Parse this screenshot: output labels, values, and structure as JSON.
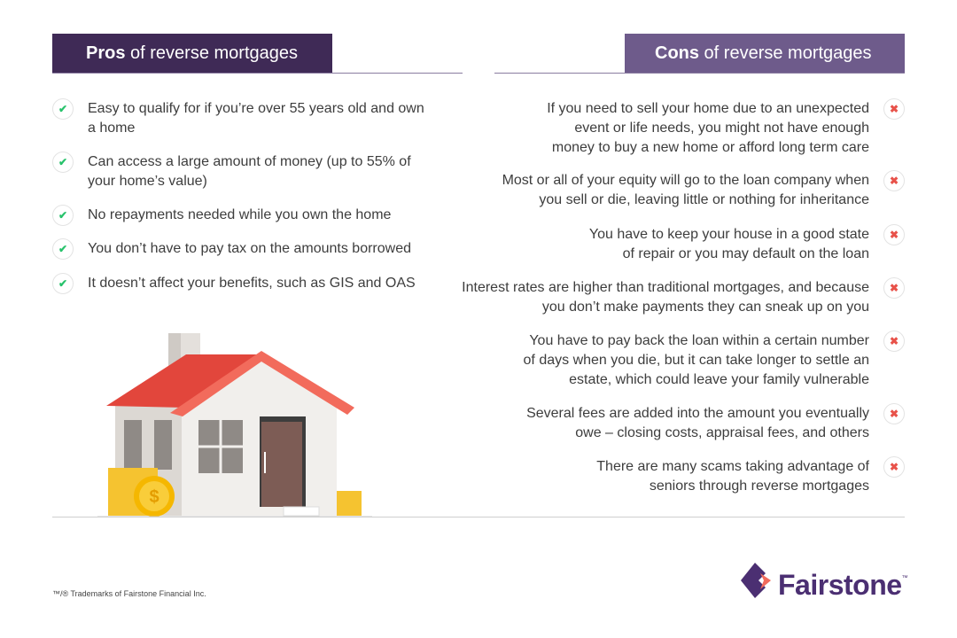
{
  "pros": {
    "title_bold": "Pros",
    "title_rest": " of reverse mortgages",
    "items": [
      "Easy to qualify for if you’re over 55 years old and own a home",
      "Can access a large amount of money (up to 55% of your home’s value)",
      "No repayments needed while you own the home",
      "You don’t have to pay tax on the amounts borrowed",
      "It doesn’t affect your benefits, such as GIS and OAS"
    ]
  },
  "cons": {
    "title_bold": "Cons",
    "title_rest": " of reverse mortgages",
    "items": [
      "If you need to sell your home due to an unexpected event or life needs, you might not have enough money to buy a new home or afford long term care",
      "Most or all of your equity will go to the loan company when you sell or die, leaving little or nothing for inheritance",
      "You have to keep your house in a good state of repair or you may default on the loan",
      "Interest rates are higher than traditional mortgages, and because you don’t make payments they can sneak up on you",
      "You have to pay back the loan within a certain number of days when you die, but it can take longer to settle an estate, which could leave your family vulnerable",
      "Several fees are added into the amount you eventually owe – closing costs, appraisal fees, and others",
      "There are many scams taking advantage of seniors through reverse mortgages"
    ]
  },
  "icons": {
    "pro": "check-icon",
    "con": "x-icon"
  },
  "colors": {
    "pros_header": "#3f2a56",
    "cons_header": "#6e5b8b",
    "check": "#27c26b",
    "x": "#e8524a",
    "brand": "#4b2f72"
  },
  "footer": {
    "trademark": "™/® Trademarks of Fairstone Financial Inc."
  },
  "logo": {
    "text": "Fairstone",
    "tm": "™"
  }
}
